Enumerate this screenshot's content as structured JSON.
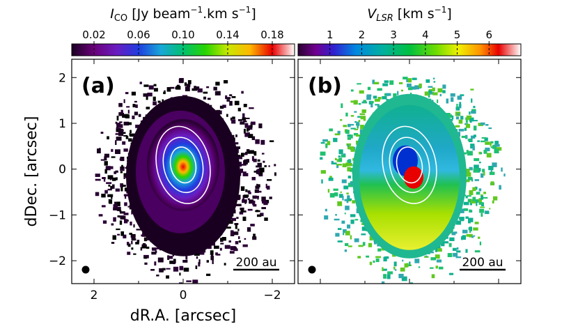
{
  "chart_data": [
    {
      "type": "heatmap",
      "panel_label": "(a)",
      "colorbar": {
        "label_main": "I",
        "label_sub": "CO",
        "label_units": "[Jy beam",
        "label_exp": "−1",
        "label_units2": ".km s",
        "label_exp2": "−1",
        "label_close": "]",
        "range": [
          0.0,
          0.2
        ],
        "ticks": [
          0.02,
          0.06,
          0.1,
          0.14,
          0.18
        ],
        "tick_labels": [
          "0.02",
          "0.06",
          "0.10",
          "0.14",
          "0.18"
        ]
      },
      "xlabel": "dR.A. [arcsec]",
      "ylabel": "dDec. [arcsec]",
      "xlim": [
        2.5,
        -2.5
      ],
      "ylim": [
        -2.5,
        2.4
      ],
      "xticks": [
        2,
        0,
        -2
      ],
      "xtick_labels": [
        "2",
        "0",
        "−2"
      ],
      "yticks": [
        2,
        1,
        0,
        -1,
        -2
      ],
      "ytick_labels": [
        "2",
        "1",
        "0",
        "−1",
        "−2"
      ],
      "scale_bar": "200 au",
      "contour_levels": 3
    },
    {
      "type": "heatmap",
      "panel_label": "(b)",
      "colorbar": {
        "label_main": "V",
        "label_sub": "LSR",
        "label_units": "[km s",
        "label_exp": "−1",
        "label_close": "]",
        "range": [
          0.0,
          7.0
        ],
        "ticks": [
          1,
          2,
          3,
          4,
          5,
          6
        ],
        "tick_labels": [
          "1",
          "2",
          "3",
          "4",
          "5",
          "6"
        ]
      },
      "xlim": [
        2.5,
        -2.5
      ],
      "ylim": [
        -2.5,
        2.4
      ],
      "scale_bar": "200 au",
      "contour_levels": 3
    }
  ]
}
